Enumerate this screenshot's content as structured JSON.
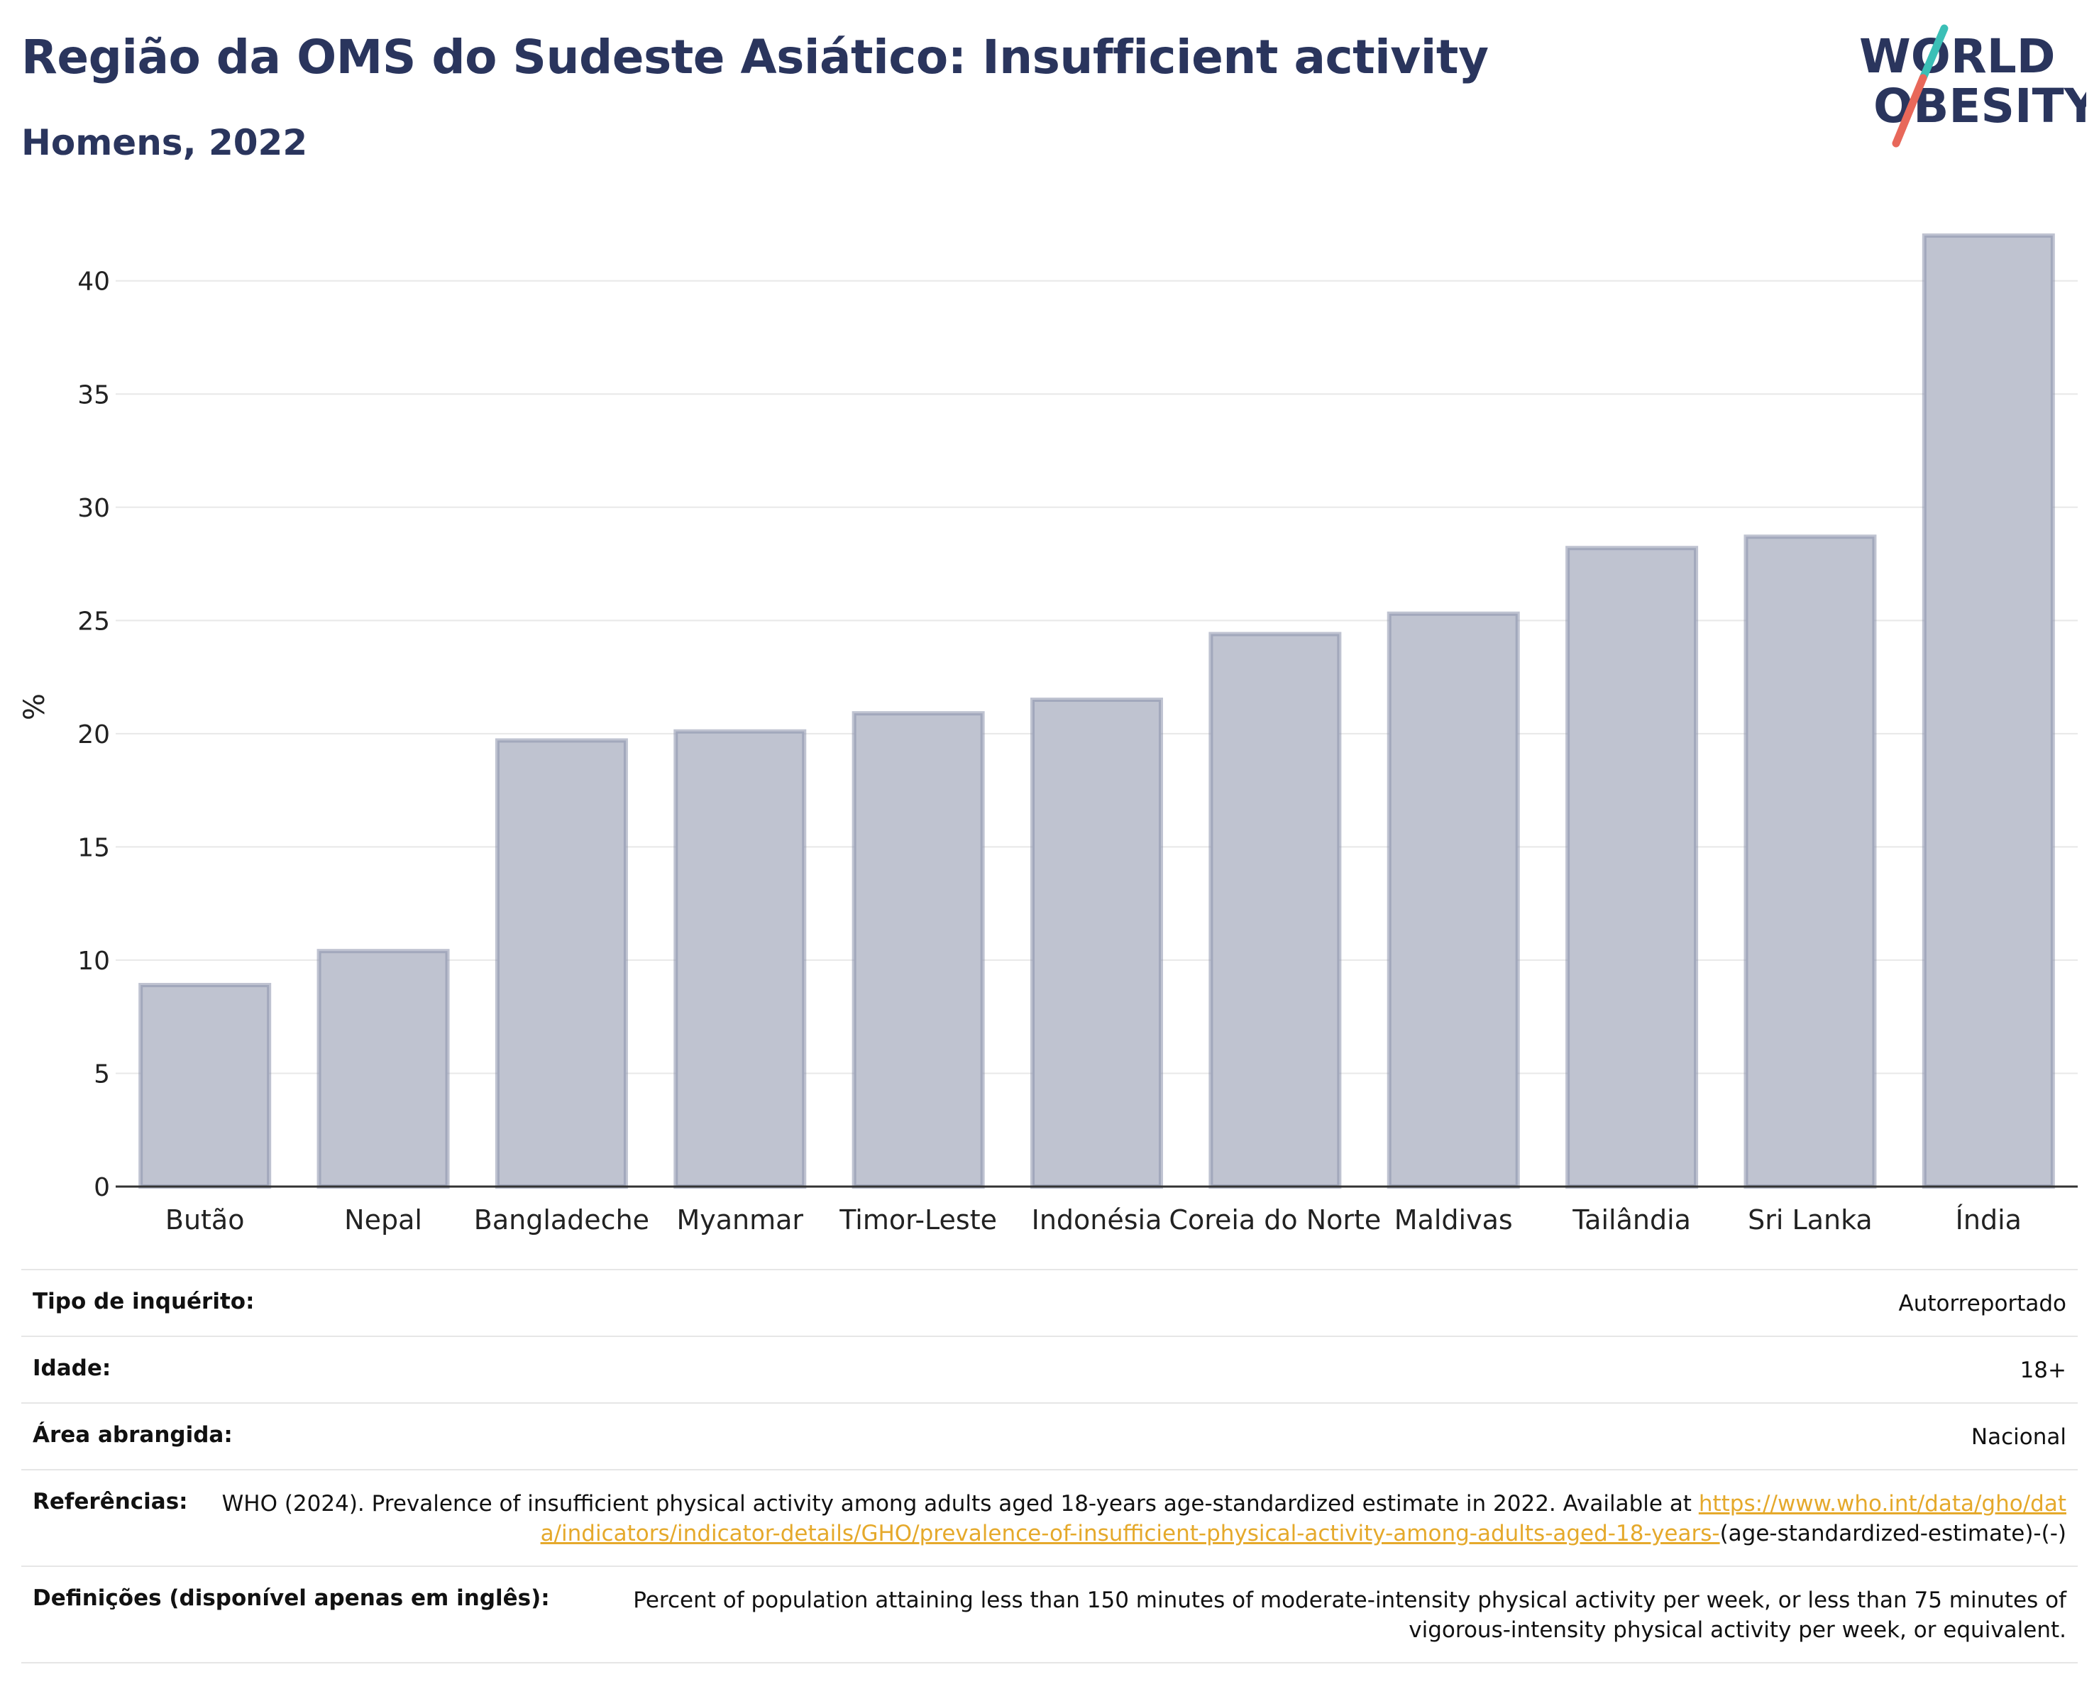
{
  "header": {
    "title": "Região da OMS do Sudeste Asiático: Insufficient activity",
    "subtitle": "Homens, 2022"
  },
  "logo": {
    "line1": "WORLD",
    "line2": "OBESITY",
    "colors": {
      "text": "#2a355d",
      "slash_top": "#3bbfb6",
      "slash_bottom": "#e8685a"
    }
  },
  "chart_data": {
    "type": "bar",
    "categories": [
      "Butão",
      "Nepal",
      "Bangladeche",
      "Myanmar",
      "Timor-Leste",
      "Indonésia",
      "Coreia do Norte",
      "Maldivas",
      "Tailândia",
      "Sri Lanka",
      "Índia"
    ],
    "values": [
      8.9,
      10.4,
      19.7,
      20.1,
      20.9,
      21.5,
      24.4,
      25.3,
      28.2,
      28.7,
      42.0
    ],
    "title": "Região da OMS do Sudeste Asiático: Insufficient activity",
    "subtitle": "Homens, 2022",
    "xlabel": "",
    "ylabel": "%",
    "ylim": [
      0,
      43
    ],
    "yticks": [
      0,
      5,
      10,
      15,
      20,
      25,
      30,
      35,
      40
    ],
    "grid": true,
    "colors": {
      "bar_fill": "#bfc3d0",
      "bar_stroke": "#8a91ab",
      "grid": "#e8e8e8",
      "axis": "#333333"
    }
  },
  "info": [
    {
      "label": "Tipo de inquérito:",
      "value": "Autorreportado"
    },
    {
      "label": "Idade:",
      "value": "18+"
    },
    {
      "label": "Área abrangida:",
      "value": "Nacional"
    },
    {
      "label": "Referências:",
      "value": "WHO (2024). Prevalence of insufficient physical activity among adults aged 18-years age-standardized estimate in 2022. Available at",
      "link": "https://www.who.int/data/gho/data/indicators/indicator-details/GHO/prevalence-of-insufficient-physical-activity-among-adults-aged-18-years-",
      "suffix": "(age-standardized-estimate)-(-)"
    },
    {
      "label": "Definições (disponível apenas em inglês):",
      "value": "Percent of population attaining less than 150 minutes of moderate-intensity physical activity per week, or less than 75 minutes of vigorous-intensity physical activity per week, or equivalent."
    }
  ]
}
